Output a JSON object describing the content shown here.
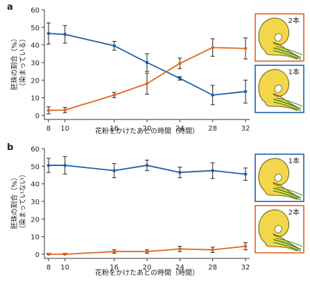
{
  "chart_data": [
    {
      "type": "line",
      "panel_label": "a",
      "xlabel": "花粉をかけたあとの時間（時間）",
      "ylabel_main": "胚珠の割合（%）",
      "ylabel_sub": "（染まっている）",
      "x": [
        8,
        10,
        16,
        20,
        24,
        28,
        32
      ],
      "xlim": [
        8,
        32
      ],
      "ylim": [
        0,
        60
      ],
      "xticks": [
        "8",
        "10",
        "16",
        "20",
        "24",
        "28",
        "32"
      ],
      "yticks": [
        "0",
        "10",
        "20",
        "30",
        "40",
        "50",
        "60"
      ],
      "grid": false,
      "series": [
        {
          "color": "#1f5fa8",
          "values": [
            46.5,
            46,
            39.5,
            30,
            21,
            11.5,
            13.5
          ],
          "errors": [
            6,
            5,
            2.5,
            5,
            1,
            5.5,
            6.5
          ]
        },
        {
          "color": "#e2641a",
          "values": [
            2.8,
            3,
            11.5,
            18,
            29.5,
            38.5,
            38
          ],
          "errors": [
            2,
            1.5,
            1.5,
            6,
            3,
            5,
            6
          ]
        }
      ],
      "legend": [
        {
          "label": "2本",
          "border_color": "#e2641a"
        },
        {
          "label": "1本",
          "border_color": "#1f5fa8"
        }
      ]
    },
    {
      "type": "line",
      "panel_label": "b",
      "xlabel": "花粉をかけたあとの時間（時間）",
      "ylabel_main": "胚珠の割合（%）",
      "ylabel_sub": "（染まっていない）",
      "x": [
        8,
        10,
        16,
        20,
        24,
        28,
        32
      ],
      "xlim": [
        8,
        32
      ],
      "ylim": [
        0,
        60
      ],
      "xticks": [
        "8",
        "10",
        "16",
        "20",
        "24",
        "28",
        "32"
      ],
      "yticks": [
        "0",
        "10",
        "20",
        "30",
        "40",
        "50",
        "60"
      ],
      "grid": false,
      "series": [
        {
          "color": "#1f5fa8",
          "values": [
            50.5,
            50.5,
            47.5,
            50.5,
            46.5,
            47.5,
            45.5
          ],
          "errors": [
            4,
            5,
            4,
            3,
            3,
            4.5,
            3.5
          ]
        },
        {
          "color": "#e2641a",
          "values": [
            0,
            0,
            1.5,
            1.5,
            3,
            2.5,
            4.5
          ],
          "errors": [
            0.5,
            0.5,
            1,
            1,
            1.5,
            1.5,
            2
          ]
        }
      ],
      "legend": [
        {
          "label": "1本",
          "border_color": "#1f5fa8"
        },
        {
          "label": "2本",
          "border_color": "#e2641a"
        }
      ]
    }
  ]
}
